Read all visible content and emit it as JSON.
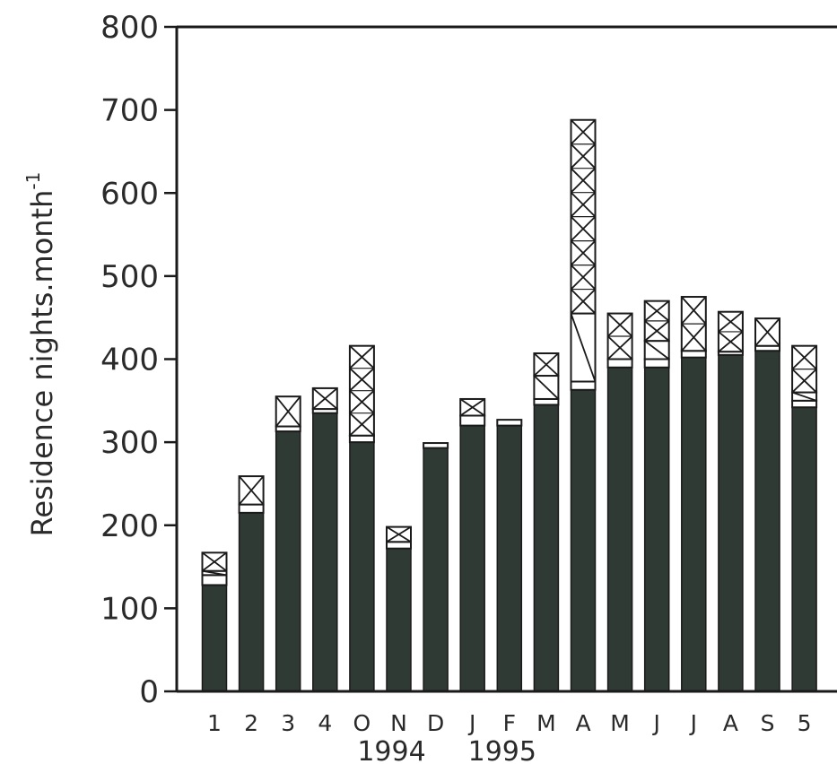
{
  "chart_data": {
    "type": "bar",
    "stacked": true,
    "ylabel": "Residence nights.month",
    "ylabel_superscript": "-1",
    "ylim": [
      0,
      800
    ],
    "yticks": [
      "0",
      "100",
      "200",
      "300",
      "400",
      "500",
      "600",
      "700",
      "800"
    ],
    "categories": [
      "1",
      "2",
      "3",
      "4",
      "O",
      "N",
      "D",
      "J",
      "F",
      "M",
      "A",
      "M",
      "J",
      "J",
      "A",
      "S",
      "5"
    ],
    "year_labels": [
      {
        "text": "1994",
        "under_category_index": 5
      },
      {
        "text": "1995",
        "under_category_index": 8
      }
    ],
    "grid": false,
    "series": [
      {
        "fill": "solid-dark",
        "values": [
          128,
          215,
          313,
          335,
          300,
          172,
          293,
          320,
          320,
          345,
          363,
          390,
          390,
          402,
          405,
          410,
          342
        ]
      },
      {
        "fill": "white",
        "values": [
          12,
          10,
          6,
          5,
          8,
          8,
          6,
          12,
          7,
          7,
          10,
          10,
          10,
          8,
          4,
          6,
          8
        ]
      },
      {
        "fill": "hatched-diagonal",
        "values": [
          5,
          0,
          0,
          0,
          0,
          0,
          0,
          0,
          0,
          28,
          82,
          0,
          22,
          0,
          0,
          0,
          10
        ]
      },
      {
        "fill": "cross-hatched",
        "values": [
          22,
          34,
          36,
          25,
          108,
          18,
          0,
          20,
          0,
          27,
          233,
          55,
          48,
          65,
          48,
          33,
          56
        ]
      }
    ],
    "colors": {
      "solid": "#2f3a35",
      "outline": "#1a1a1a"
    }
  }
}
